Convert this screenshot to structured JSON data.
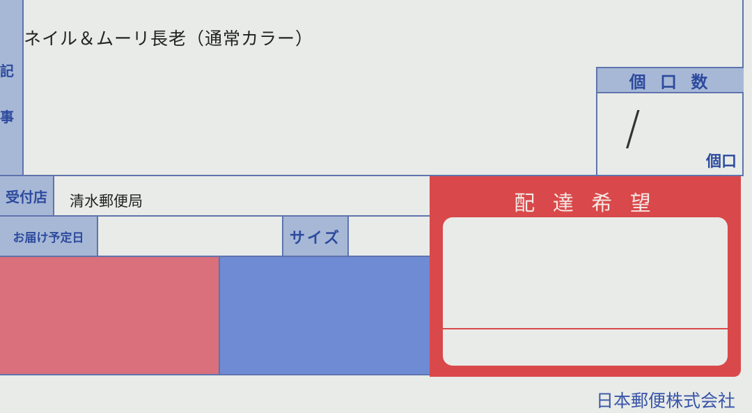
{
  "remarks": {
    "label_chars": [
      "記",
      "事"
    ],
    "content": "ネイル＆ムーリ長老（通常カラー）"
  },
  "package_count": {
    "header": "個 口 数",
    "value": "/",
    "unit": "個口"
  },
  "receiving_office": {
    "label": "受付店",
    "value": "清水郵便局"
  },
  "delivery_date": {
    "label": "お届け予定日",
    "value": ""
  },
  "size": {
    "label": "サイズ",
    "value": ""
  },
  "delivery_request": {
    "title": "配 達 希 望"
  },
  "company": "日本郵便株式会社",
  "colors": {
    "label_blue": "#a7b8d6",
    "text_blue": "#2d4a9e",
    "pink_block": "#d9707c",
    "blue_block": "#6f8bd3",
    "red_box": "#d9484a"
  }
}
